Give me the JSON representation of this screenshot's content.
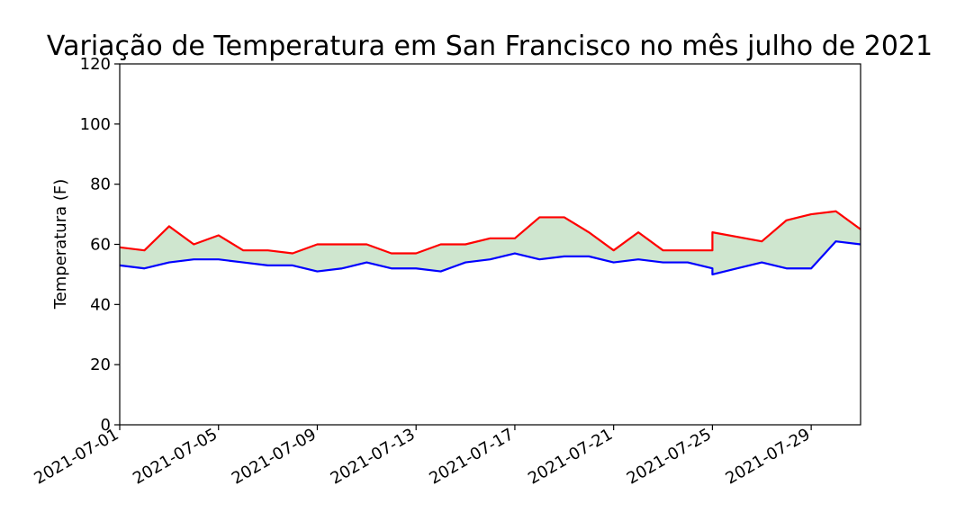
{
  "chart_data": {
    "type": "area",
    "title": "Variação de Temperatura em San Francisco no mês julho de 2021",
    "xlabel": "",
    "ylabel": "Temperatura (F)",
    "ylim": [
      0,
      120
    ],
    "yticks": [
      0,
      20,
      40,
      60,
      80,
      100,
      120
    ],
    "xlim": [
      "2021-07-01",
      "2021-07-31"
    ],
    "xticks": [
      "2021-07-01",
      "2021-07-05",
      "2021-07-09",
      "2021-07-13",
      "2021-07-17",
      "2021-07-21",
      "2021-07-25",
      "2021-07-29"
    ],
    "grid": false,
    "legend": "none",
    "fill_color": "#cfe6cf",
    "series": [
      {
        "color": "#ff0000",
        "points": [
          [
            "2021-07-01",
            59
          ],
          [
            "2021-07-02",
            58
          ],
          [
            "2021-07-03",
            66
          ],
          [
            "2021-07-04",
            60
          ],
          [
            "2021-07-05",
            63
          ],
          [
            "2021-07-06",
            58
          ],
          [
            "2021-07-07",
            58
          ],
          [
            "2021-07-08",
            57
          ],
          [
            "2021-07-09",
            60
          ],
          [
            "2021-07-10",
            60
          ],
          [
            "2021-07-11",
            60
          ],
          [
            "2021-07-12",
            57
          ],
          [
            "2021-07-13",
            57
          ],
          [
            "2021-07-14",
            60
          ],
          [
            "2021-07-15",
            60
          ],
          [
            "2021-07-16",
            62
          ],
          [
            "2021-07-17",
            62
          ],
          [
            "2021-07-18",
            69
          ],
          [
            "2021-07-19",
            69
          ],
          [
            "2021-07-20",
            64
          ],
          [
            "2021-07-21",
            58
          ],
          [
            "2021-07-22",
            64
          ],
          [
            "2021-07-23",
            58
          ],
          [
            "2021-07-24",
            58
          ],
          [
            "2021-07-25",
            58
          ],
          [
            "2021-07-25",
            64
          ],
          [
            "2021-07-27",
            61
          ],
          [
            "2021-07-28",
            68
          ],
          [
            "2021-07-29",
            70
          ],
          [
            "2021-07-30",
            71
          ],
          [
            "2021-07-31",
            65
          ]
        ]
      },
      {
        "color": "#0000ff",
        "points": [
          [
            "2021-07-01",
            53
          ],
          [
            "2021-07-02",
            52
          ],
          [
            "2021-07-03",
            54
          ],
          [
            "2021-07-04",
            55
          ],
          [
            "2021-07-05",
            55
          ],
          [
            "2021-07-06",
            54
          ],
          [
            "2021-07-07",
            53
          ],
          [
            "2021-07-08",
            53
          ],
          [
            "2021-07-09",
            51
          ],
          [
            "2021-07-10",
            52
          ],
          [
            "2021-07-11",
            54
          ],
          [
            "2021-07-12",
            52
          ],
          [
            "2021-07-13",
            52
          ],
          [
            "2021-07-14",
            51
          ],
          [
            "2021-07-15",
            54
          ],
          [
            "2021-07-16",
            55
          ],
          [
            "2021-07-17",
            57
          ],
          [
            "2021-07-18",
            55
          ],
          [
            "2021-07-19",
            56
          ],
          [
            "2021-07-20",
            56
          ],
          [
            "2021-07-21",
            54
          ],
          [
            "2021-07-22",
            55
          ],
          [
            "2021-07-23",
            54
          ],
          [
            "2021-07-24",
            54
          ],
          [
            "2021-07-25",
            52
          ],
          [
            "2021-07-25",
            50
          ],
          [
            "2021-07-26",
            52
          ],
          [
            "2021-07-27",
            54
          ],
          [
            "2021-07-28",
            52
          ],
          [
            "2021-07-29",
            52
          ],
          [
            "2021-07-30",
            61
          ],
          [
            "2021-07-31",
            60
          ]
        ]
      }
    ]
  }
}
